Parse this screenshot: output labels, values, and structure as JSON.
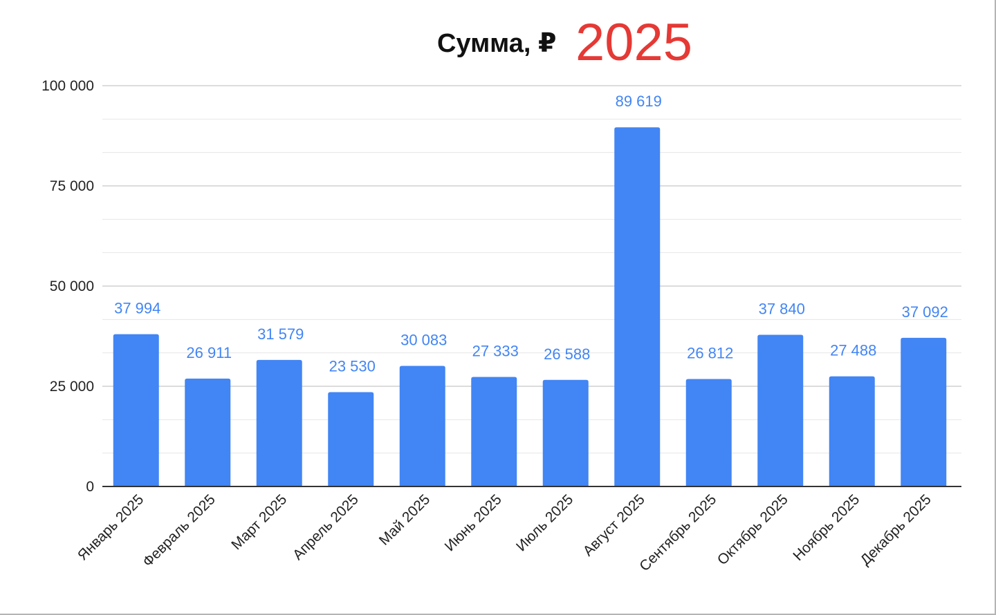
{
  "title_main": "Сумма, ₽",
  "title_year": "2025",
  "colors": {
    "bar": "#4285f4",
    "label": "#4285f4",
    "year": "#e53935",
    "grid": "#d0d0d0"
  },
  "chart_data": {
    "type": "bar",
    "title": "Сумма, ₽ 2025",
    "categories": [
      "Январь 2025",
      "Февраль 2025",
      "Март 2025",
      "Апрель 2025",
      "Май 2025",
      "Июнь 2025",
      "Июль 2025",
      "Август 2025",
      "Сентябрь 2025",
      "Октябрь 2025",
      "Ноябрь 2025",
      "Декабрь 2025"
    ],
    "values": [
      37994,
      26911,
      31579,
      23530,
      30083,
      27333,
      26588,
      89619,
      26812,
      37840,
      27488,
      37092
    ],
    "value_labels": [
      "37 994",
      "26 911",
      "31 579",
      "23 530",
      "30 083",
      "27 333",
      "26 588",
      "89 619",
      "26 812",
      "37 840",
      "27 488",
      "37 092"
    ],
    "yticks": [
      0,
      25000,
      50000,
      75000,
      100000
    ],
    "ytick_labels": [
      "0",
      "25 000",
      "50 000",
      "75 000",
      "100 000"
    ],
    "ylim": [
      0,
      100000
    ],
    "grid": true,
    "legend": "none",
    "xlabel": "",
    "ylabel": ""
  }
}
